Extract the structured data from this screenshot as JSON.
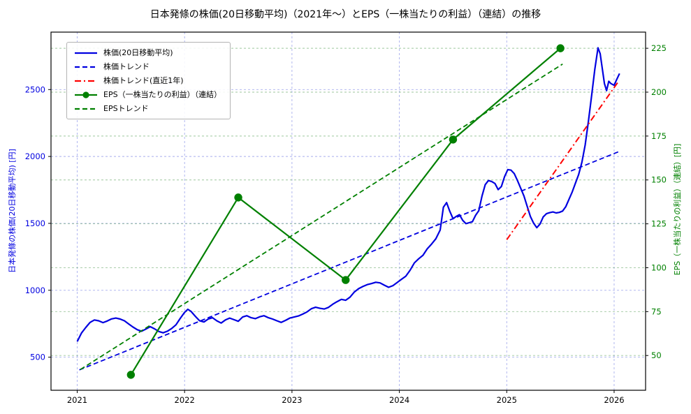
{
  "title": "日本発條の株価(20日移動平均)（2021年～）とEPS（一株当たりの利益）（連結）の推移",
  "axes": {
    "x": {
      "ticks": [
        2021,
        2022,
        2023,
        2024,
        2025,
        2026
      ],
      "color": "#000000"
    },
    "price": {
      "label": "日本発條の株価(20日移動平均) [円]",
      "ticks": [
        500,
        1000,
        1500,
        2000,
        2500
      ],
      "color": "#0000e0"
    },
    "eps": {
      "label": "EPS（一株当たりの利益）（連結）[円]",
      "ticks": [
        50,
        75,
        100,
        125,
        150,
        175,
        200,
        225
      ],
      "color": "#008000"
    }
  },
  "grid": {
    "x_color": "#8a93e8",
    "price_color": "#8a93e8",
    "eps_color": "#86b886"
  },
  "legend": {
    "items": [
      {
        "label": "株価(20日移動平均)",
        "color": "#0000e0",
        "style": "solid",
        "marker": false
      },
      {
        "label": "株価トレンド",
        "color": "#0000e0",
        "style": "dashed",
        "marker": false
      },
      {
        "label": "株価トレンド(直近1年)",
        "color": "#ff0000",
        "style": "dashdot",
        "marker": false
      },
      {
        "label": "EPS（一株当たりの利益）（連結）",
        "color": "#008000",
        "style": "solid",
        "marker": true
      },
      {
        "label": "EPSトレンド",
        "color": "#008000",
        "style": "dashed",
        "marker": false
      }
    ]
  },
  "chart_data": {
    "type": "line",
    "x_range": [
      2020.756,
      2026.293
    ],
    "price_range": [
      252.6,
      2929.4
    ],
    "eps_range": [
      30.2,
      234.2
    ],
    "grid": true,
    "legend_position": "upper-left",
    "series": [
      {
        "key": "price-ma",
        "name": "株価(20日移動平均)",
        "axis": "price",
        "color": "#0000e0",
        "style": "solid",
        "width": 2.2,
        "marker": false,
        "points": [
          [
            2021.0,
            617
          ],
          [
            2021.04,
            680
          ],
          [
            2021.08,
            722
          ],
          [
            2021.12,
            760
          ],
          [
            2021.16,
            778
          ],
          [
            2021.2,
            772
          ],
          [
            2021.24,
            758
          ],
          [
            2021.28,
            770
          ],
          [
            2021.32,
            786
          ],
          [
            2021.36,
            792
          ],
          [
            2021.4,
            785
          ],
          [
            2021.44,
            772
          ],
          [
            2021.48,
            748
          ],
          [
            2021.52,
            725
          ],
          [
            2021.56,
            705
          ],
          [
            2021.6,
            694
          ],
          [
            2021.64,
            710
          ],
          [
            2021.68,
            728
          ],
          [
            2021.72,
            712
          ],
          [
            2021.76,
            692
          ],
          [
            2021.8,
            682
          ],
          [
            2021.84,
            694
          ],
          [
            2021.88,
            715
          ],
          [
            2021.92,
            742
          ],
          [
            2021.96,
            790
          ],
          [
            2022.0,
            835
          ],
          [
            2022.03,
            858
          ],
          [
            2022.06,
            842
          ],
          [
            2022.1,
            805
          ],
          [
            2022.14,
            772
          ],
          [
            2022.18,
            763
          ],
          [
            2022.22,
            785
          ],
          [
            2022.26,
            795
          ],
          [
            2022.3,
            772
          ],
          [
            2022.34,
            755
          ],
          [
            2022.38,
            778
          ],
          [
            2022.42,
            792
          ],
          [
            2022.46,
            780
          ],
          [
            2022.5,
            768
          ],
          [
            2022.54,
            800
          ],
          [
            2022.58,
            810
          ],
          [
            2022.62,
            795
          ],
          [
            2022.66,
            788
          ],
          [
            2022.7,
            802
          ],
          [
            2022.74,
            810
          ],
          [
            2022.78,
            795
          ],
          [
            2022.82,
            785
          ],
          [
            2022.86,
            772
          ],
          [
            2022.9,
            760
          ],
          [
            2022.94,
            775
          ],
          [
            2022.98,
            792
          ],
          [
            2023.02,
            800
          ],
          [
            2023.06,
            808
          ],
          [
            2023.1,
            822
          ],
          [
            2023.14,
            838
          ],
          [
            2023.18,
            862
          ],
          [
            2023.22,
            873
          ],
          [
            2023.26,
            865
          ],
          [
            2023.3,
            860
          ],
          [
            2023.34,
            872
          ],
          [
            2023.38,
            896
          ],
          [
            2023.42,
            915
          ],
          [
            2023.46,
            932
          ],
          [
            2023.5,
            925
          ],
          [
            2023.54,
            948
          ],
          [
            2023.58,
            986
          ],
          [
            2023.62,
            1012
          ],
          [
            2023.66,
            1028
          ],
          [
            2023.7,
            1042
          ],
          [
            2023.74,
            1050
          ],
          [
            2023.78,
            1060
          ],
          [
            2023.82,
            1055
          ],
          [
            2023.86,
            1038
          ],
          [
            2023.9,
            1022
          ],
          [
            2023.94,
            1035
          ],
          [
            2023.98,
            1058
          ],
          [
            2024.02,
            1082
          ],
          [
            2024.06,
            1105
          ],
          [
            2024.1,
            1150
          ],
          [
            2024.14,
            1205
          ],
          [
            2024.18,
            1235
          ],
          [
            2024.22,
            1262
          ],
          [
            2024.26,
            1310
          ],
          [
            2024.3,
            1345
          ],
          [
            2024.34,
            1385
          ],
          [
            2024.38,
            1450
          ],
          [
            2024.41,
            1620
          ],
          [
            2024.44,
            1655
          ],
          [
            2024.47,
            1590
          ],
          [
            2024.5,
            1535
          ],
          [
            2024.53,
            1552
          ],
          [
            2024.56,
            1565
          ],
          [
            2024.59,
            1522
          ],
          [
            2024.62,
            1498
          ],
          [
            2024.65,
            1505
          ],
          [
            2024.68,
            1512
          ],
          [
            2024.71,
            1560
          ],
          [
            2024.74,
            1595
          ],
          [
            2024.77,
            1705
          ],
          [
            2024.8,
            1790
          ],
          [
            2024.83,
            1820
          ],
          [
            2024.86,
            1812
          ],
          [
            2024.89,
            1798
          ],
          [
            2024.92,
            1752
          ],
          [
            2024.95,
            1775
          ],
          [
            2024.98,
            1850
          ],
          [
            2025.01,
            1902
          ],
          [
            2025.04,
            1898
          ],
          [
            2025.07,
            1872
          ],
          [
            2025.1,
            1820
          ],
          [
            2025.13,
            1762
          ],
          [
            2025.16,
            1705
          ],
          [
            2025.19,
            1628
          ],
          [
            2025.22,
            1552
          ],
          [
            2025.25,
            1502
          ],
          [
            2025.28,
            1468
          ],
          [
            2025.31,
            1495
          ],
          [
            2025.34,
            1548
          ],
          [
            2025.37,
            1572
          ],
          [
            2025.4,
            1580
          ],
          [
            2025.43,
            1585
          ],
          [
            2025.46,
            1578
          ],
          [
            2025.49,
            1582
          ],
          [
            2025.52,
            1592
          ],
          [
            2025.55,
            1625
          ],
          [
            2025.58,
            1680
          ],
          [
            2025.61,
            1735
          ],
          [
            2025.64,
            1800
          ],
          [
            2025.67,
            1865
          ],
          [
            2025.7,
            1958
          ],
          [
            2025.73,
            2085
          ],
          [
            2025.76,
            2260
          ],
          [
            2025.79,
            2452
          ],
          [
            2025.82,
            2650
          ],
          [
            2025.85,
            2812
          ],
          [
            2025.87,
            2768
          ],
          [
            2025.89,
            2655
          ],
          [
            2025.91,
            2545
          ],
          [
            2025.93,
            2492
          ],
          [
            2025.95,
            2562
          ],
          [
            2025.97,
            2545
          ],
          [
            2026.0,
            2532
          ],
          [
            2026.02,
            2568
          ],
          [
            2026.05,
            2620
          ]
        ]
      },
      {
        "key": "price-trend",
        "name": "株価トレンド",
        "axis": "price",
        "color": "#0000e0",
        "style": "dashed",
        "width": 1.8,
        "marker": false,
        "points": [
          [
            2021.02,
            405
          ],
          [
            2026.04,
            2035
          ]
        ]
      },
      {
        "key": "price-trend-1y",
        "name": "株価トレンド(直近1年)",
        "axis": "price",
        "color": "#ff0000",
        "style": "dashdot",
        "width": 2.0,
        "marker": false,
        "points": [
          [
            2025.0,
            1378
          ],
          [
            2026.04,
            2560
          ]
        ]
      },
      {
        "key": "eps",
        "name": "EPS（一株当たりの利益）（連結）",
        "axis": "eps",
        "color": "#008000",
        "style": "solid",
        "width": 2.2,
        "marker": true,
        "points": [
          [
            2021.5,
            39
          ],
          [
            2022.5,
            140
          ],
          [
            2023.5,
            93
          ],
          [
            2024.5,
            173
          ],
          [
            2025.5,
            225
          ]
        ]
      },
      {
        "key": "eps-trend",
        "name": "EPSトレンド",
        "axis": "eps",
        "color": "#008000",
        "style": "dashed",
        "width": 1.8,
        "marker": false,
        "points": [
          [
            2021.03,
            42
          ],
          [
            2025.52,
            216
          ]
        ]
      }
    ]
  }
}
